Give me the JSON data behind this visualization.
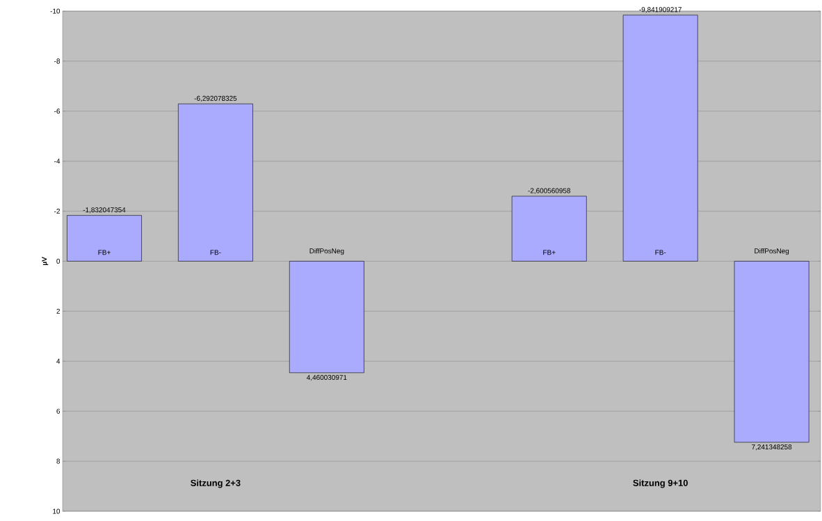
{
  "chart_data": {
    "type": "bar",
    "ylabel": "µV",
    "categories": [
      "FB+",
      "FB-",
      "DiffPosNeg",
      null,
      "FB+",
      "FB-",
      "DiffPosNeg"
    ],
    "values": [
      -1.832047354,
      -6.292078325,
      4.460030971,
      null,
      -2.600560958,
      -9.841909217,
      7.241348258
    ],
    "value_labels": [
      "-1,832047354",
      "-6,292078325",
      "4,460030971",
      null,
      "-2,600560958",
      "-9,841909217",
      "7,241348258"
    ],
    "color": "#aaaaff",
    "ylim": [
      10,
      -10
    ],
    "yticks": [
      -10,
      -8,
      -6,
      -4,
      -2,
      0,
      2,
      4,
      6,
      8,
      10
    ],
    "grid": "y",
    "annotations": [
      "Sitzung 2+3",
      "Sitzung 9+10"
    ]
  }
}
